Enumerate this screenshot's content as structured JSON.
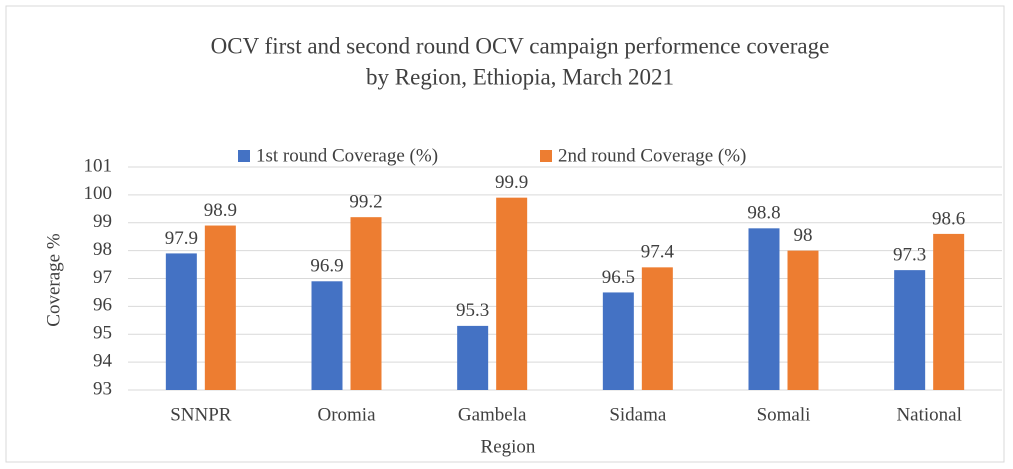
{
  "chart_data": {
    "type": "bar",
    "title": [
      "OCV first and second round OCV campaign performence coverage",
      "by Region, Ethiopia, March 2021"
    ],
    "x_label": "Region",
    "y_label": "Coverage %",
    "categories": [
      "SNNPR",
      "Oromia",
      "Gambela",
      "Sidama",
      "Somali",
      "National"
    ],
    "series": [
      {
        "name": "1st round Coverage (%)",
        "color": "#4472c4",
        "values": [
          97.9,
          96.9,
          95.3,
          96.5,
          98.8,
          97.3
        ]
      },
      {
        "name": "2nd round Coverage (%)",
        "color": "#ed7d31",
        "values": [
          98.9,
          99.2,
          99.9,
          97.4,
          98,
          98.6
        ]
      }
    ],
    "ylim": [
      93,
      101
    ],
    "yticks": [
      93,
      94,
      95,
      96,
      97,
      98,
      99,
      100,
      101
    ],
    "grid": true,
    "legend": "top"
  }
}
